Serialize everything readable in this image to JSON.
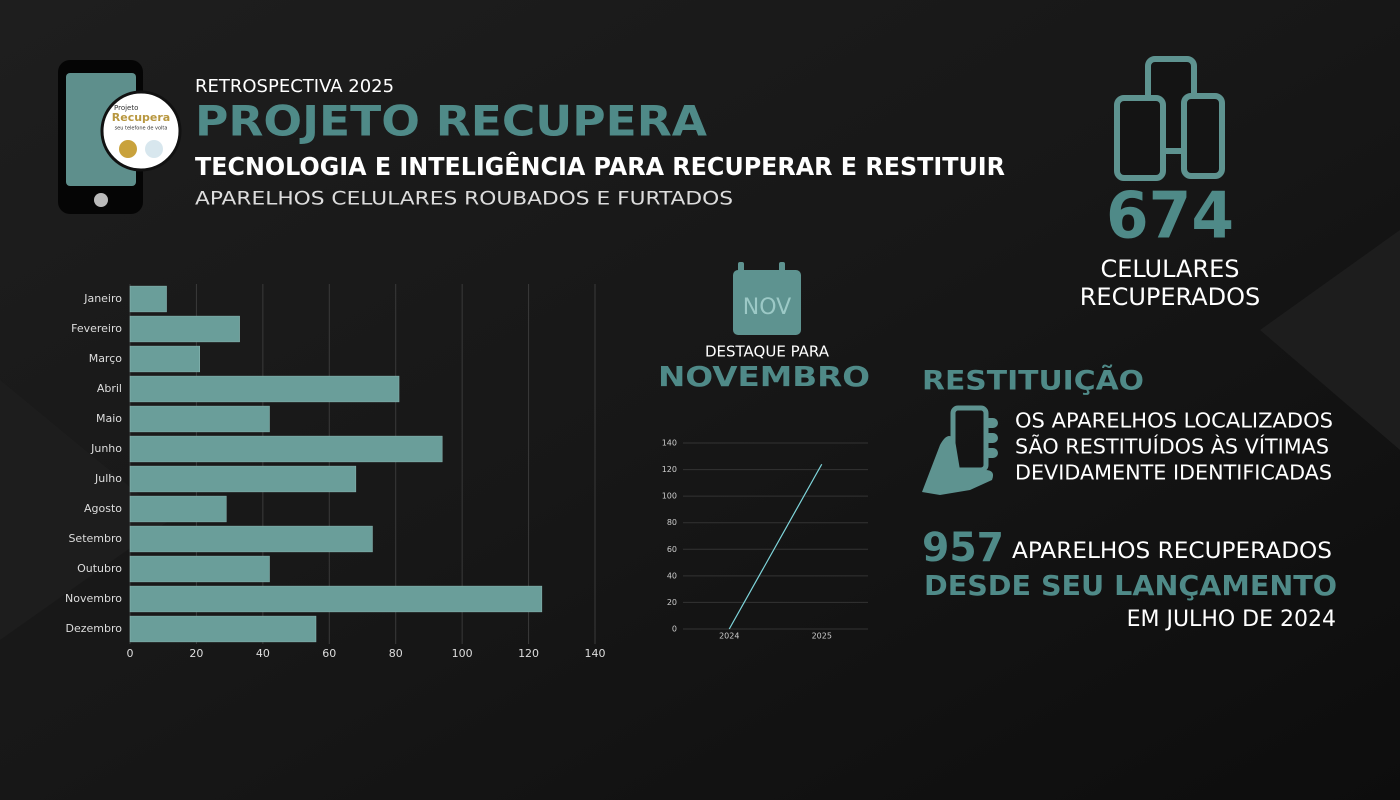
{
  "header": {
    "kicker": "RETROSPECTIVA 2025",
    "title": "PROJETO RECUPERA",
    "subtitle": "TECNOLOGIA E INTELIGÊNCIA PARA RECUPERAR E RESTITUIR",
    "tagline": "APARELHOS CELULARES ROUBADOS E FURTADOS",
    "logo": {
      "line1": "Projeto",
      "line2": "Recupera",
      "line3": "seu telefone de volta"
    }
  },
  "total": {
    "number": "674",
    "line1": "CELULARES",
    "line2": "RECUPERADOS"
  },
  "highlight": {
    "calendar": "NOV",
    "label": "DESTAQUE PARA",
    "month": "NOVEMBRO"
  },
  "restitution": {
    "title": "RESTITUIÇÃO",
    "lines": [
      "OS APARELHOS LOCALIZADOS",
      "SÃO RESTITUÍDOS ÀS VÍTIMAS",
      "DEVIDAMENTE IDENTIFICADAS"
    ]
  },
  "since_launch": {
    "number": "957",
    "text": "APARELHOS RECUPERADOS",
    "emphasis": "DESDE SEU LANÇAMENTO",
    "date": "EM JULHO DE 2024"
  },
  "chart_data": [
    {
      "type": "bar",
      "orientation": "horizontal",
      "categories": [
        "Janeiro",
        "Fevereiro",
        "Março",
        "Abril",
        "Maio",
        "Junho",
        "Julho",
        "Agosto",
        "Setembro",
        "Outubro",
        "Novembro",
        "Dezembro"
      ],
      "values": [
        11,
        33,
        21,
        81,
        42,
        94,
        68,
        29,
        73,
        42,
        124,
        56
      ],
      "color": "#6a9e9a",
      "xlim": [
        0,
        140
      ],
      "xticks": [
        0,
        20,
        40,
        60,
        80,
        100,
        120,
        140
      ],
      "grid": true
    },
    {
      "type": "line",
      "categories": [
        "2024",
        "2025"
      ],
      "values": [
        0,
        124
      ],
      "color": "#7fd6dc",
      "ylim": [
        0,
        140
      ],
      "yticks": [
        0,
        20,
        40,
        60,
        80,
        100,
        120,
        140
      ],
      "grid": true
    }
  ]
}
